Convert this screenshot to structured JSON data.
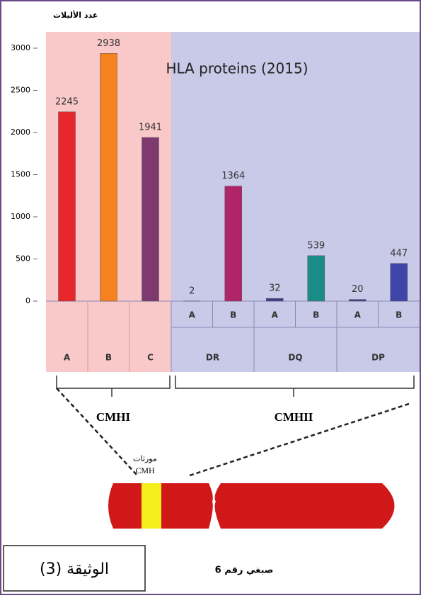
{
  "chart_data": {
    "type": "bar",
    "title": "HLA proteins (2015)",
    "ylabel": "عدد الأليلات",
    "categories": [
      "A",
      "B",
      "C",
      "A",
      "B",
      "A",
      "B",
      "A",
      "B"
    ],
    "groups": [
      "DR",
      "DQ",
      "DP"
    ],
    "values": [
      2245,
      2938,
      1941,
      2,
      1364,
      32,
      539,
      20,
      447
    ],
    "colors": [
      "#e8262b",
      "#f5821f",
      "#7e3a6e",
      "#3b3f8f",
      "#b0256a",
      "#3b3f8f",
      "#1a8c87",
      "#3b3f8f",
      "#3e45a8"
    ],
    "ylim": [
      0,
      3000
    ],
    "yticks": [
      0,
      500,
      1000,
      1500,
      2000,
      2500,
      3000
    ],
    "classes": [
      "CMHI",
      "CMHII"
    ],
    "gene_label": [
      "مورثات",
      "CMH"
    ],
    "chromosome_label": "صبغي رقم 6",
    "document_label": "الوثيقة (3)"
  }
}
